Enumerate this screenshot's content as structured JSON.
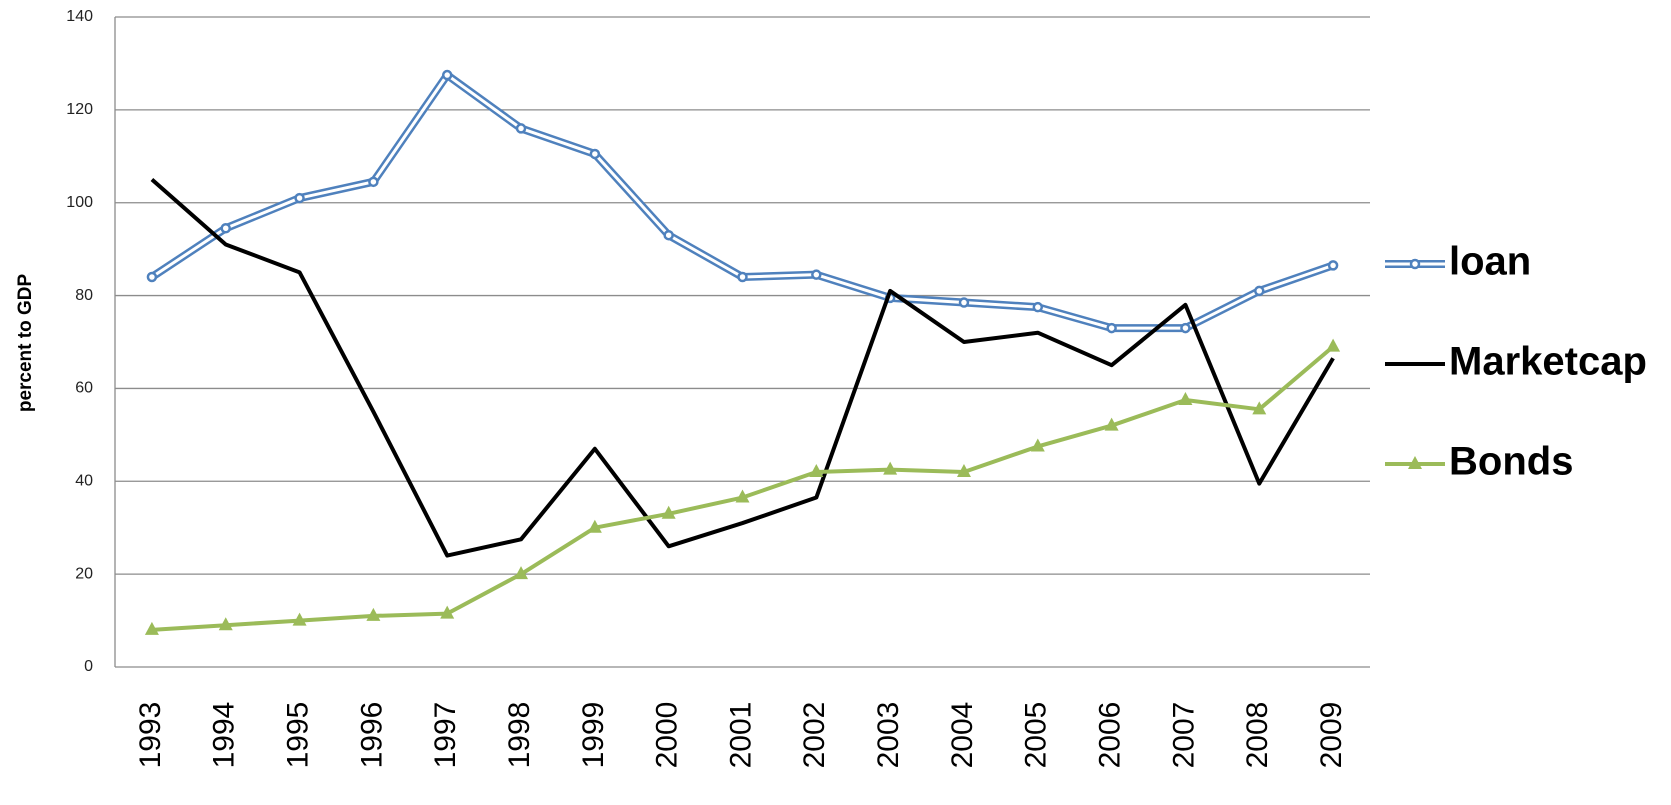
{
  "chart_data": {
    "type": "line",
    "y_label": "percent to GDP",
    "categories": [
      "1993",
      "1994",
      "1995",
      "1996",
      "1997",
      "1998",
      "1999",
      "2000",
      "2001",
      "2002",
      "2003",
      "2004",
      "2005",
      "2006",
      "2007",
      "2008",
      "2009"
    ],
    "series": [
      {
        "name": "loan",
        "color": "#4f81bd",
        "marker": "circle",
        "line_style": "double",
        "values": [
          84,
          94.5,
          101,
          104.5,
          127.5,
          116,
          110.5,
          93,
          84,
          84.5,
          79.5,
          78.5,
          77.5,
          73,
          73,
          81,
          86.5
        ]
      },
      {
        "name": "Marketcap",
        "color": "#000000",
        "marker": "none",
        "line_style": "solid",
        "values": [
          105,
          91,
          85,
          55,
          24,
          27.5,
          47,
          26,
          31,
          36.5,
          81,
          70,
          72,
          65,
          78,
          39.5,
          66.5
        ]
      },
      {
        "name": "Bonds",
        "color": "#9bbb59",
        "marker": "triangle",
        "line_style": "solid",
        "values": [
          8,
          9,
          10,
          11,
          11.5,
          20,
          30,
          33,
          36.5,
          42,
          42.5,
          42,
          47.5,
          52,
          57.5,
          55.5,
          69
        ]
      }
    ],
    "ylim": [
      0,
      140
    ],
    "yticks": [
      0,
      20,
      40,
      60,
      80,
      100,
      120,
      140
    ],
    "grid": true,
    "legend": "right"
  }
}
